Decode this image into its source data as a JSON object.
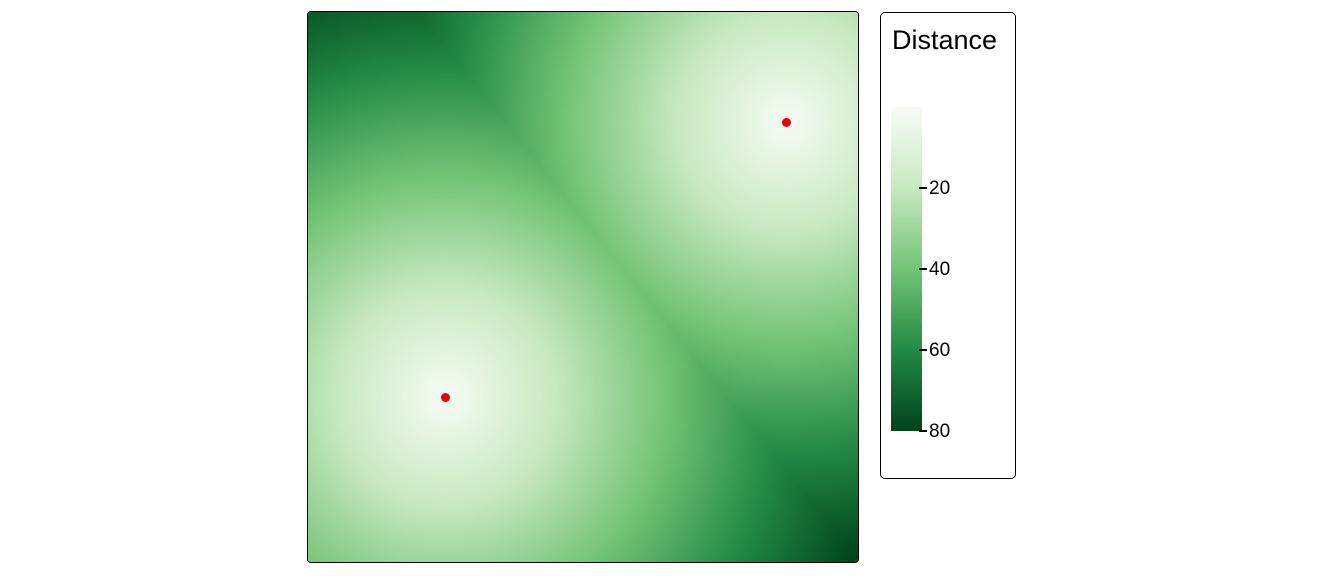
{
  "map": {
    "type": "distance-raster",
    "extent": {
      "x": [
        0,
        100
      ],
      "y": [
        0,
        100
      ]
    },
    "points": [
      {
        "x": 25,
        "y": 30
      },
      {
        "x": 87,
        "y": 80
      }
    ],
    "point_color": "#e8000b",
    "palette": [
      "#f7fcf5",
      "#c7e9c0",
      "#74c476",
      "#238b45",
      "#00441b"
    ]
  },
  "legend": {
    "title": "Distance",
    "range": [
      0,
      80
    ],
    "ticks": [
      {
        "value": 20,
        "label": "20"
      },
      {
        "value": 40,
        "label": "40"
      },
      {
        "value": 60,
        "label": "60"
      },
      {
        "value": 80,
        "label": "80"
      }
    ]
  }
}
